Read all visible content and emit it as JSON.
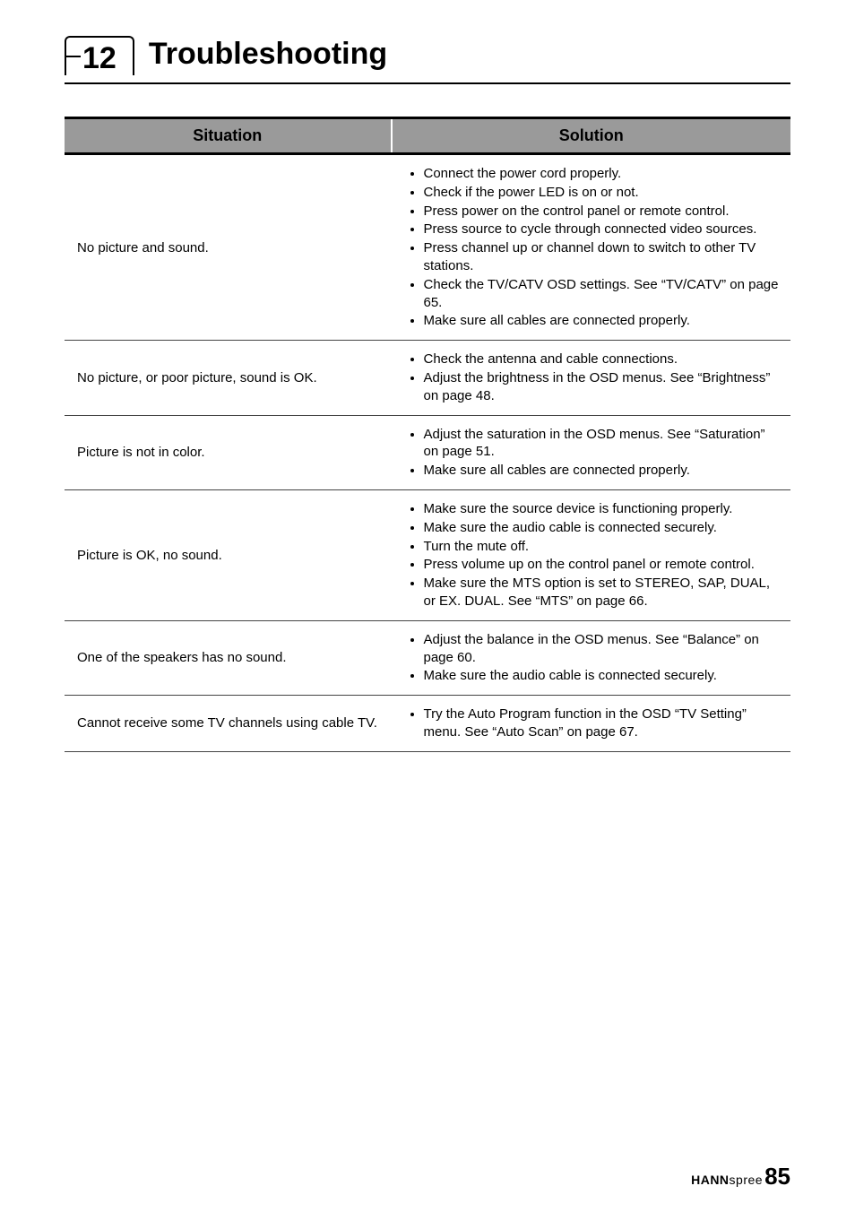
{
  "chapter": {
    "number": "12",
    "title": "Troubleshooting"
  },
  "table": {
    "headers": {
      "situation": "Situation",
      "solution": "Solution"
    },
    "rows": [
      {
        "situation": "No picture and sound.",
        "solutions": [
          "Connect the power cord properly.",
          "Check if the power LED is on or not.",
          "Press power on the control panel or remote control.",
          "Press source to cycle through connected video sources.",
          "Press channel up or channel down to switch to other TV stations.",
          "Check the TV/CATV OSD settings. See “TV/CATV” on page 65.",
          "Make sure all cables are connected properly."
        ]
      },
      {
        "situation": "No picture, or poor picture, sound is OK.",
        "solutions": [
          "Check the antenna and cable connections.",
          "Adjust the brightness in the OSD menus. See “Brightness” on page 48."
        ]
      },
      {
        "situation": "Picture is not in color.",
        "solutions": [
          "Adjust the saturation in the OSD menus. See “Saturation” on page 51.",
          "Make sure all cables are connected properly."
        ]
      },
      {
        "situation": "Picture is OK, no sound.",
        "solutions": [
          "Make sure the source device is functioning properly.",
          "Make sure the audio cable is connected securely.",
          "Turn the mute off.",
          "Press volume up on the control panel or remote control.",
          "Make sure the MTS option is set to STEREO, SAP, DUAL, or EX. DUAL. See “MTS” on page 66."
        ]
      },
      {
        "situation": "One of the speakers has no sound.",
        "solutions": [
          "Adjust the balance in the OSD menus. See “Balance” on page 60.",
          "Make sure the audio cable is connected securely."
        ]
      },
      {
        "situation": "Cannot receive some TV channels using cable TV.",
        "solutions": [
          "Try the Auto Program function in the OSD “TV Setting” menu. See “Auto Scan” on page 67."
        ]
      }
    ]
  },
  "footer": {
    "brand_bold": "HANN",
    "brand_thin": "spree",
    "page": "85"
  }
}
